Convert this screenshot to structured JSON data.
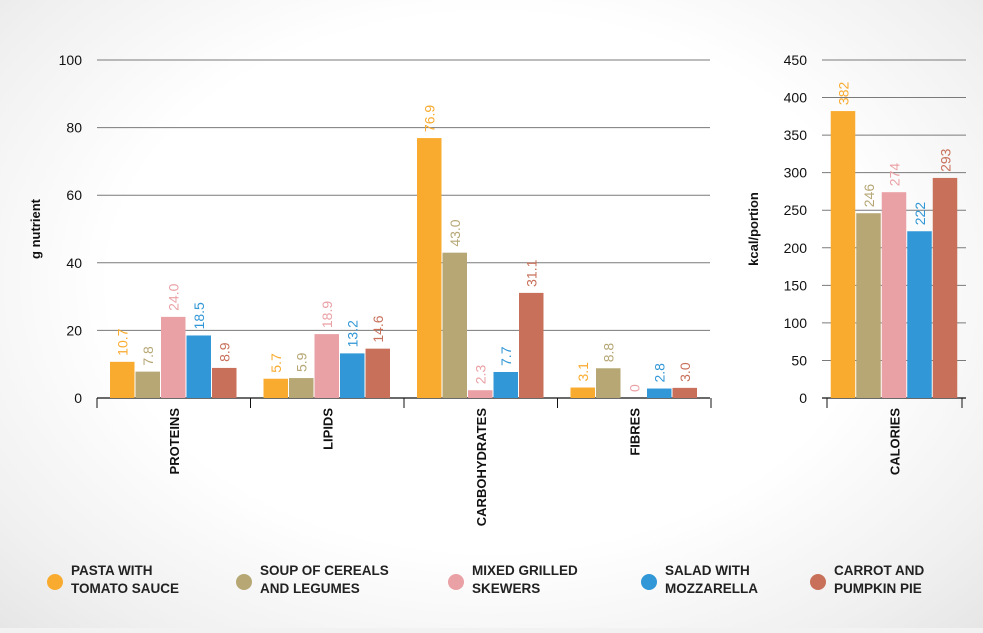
{
  "chart_data": [
    {
      "type": "bar",
      "ylabel": "g nutrient",
      "ylim": [
        0,
        100
      ],
      "yticks": [
        "0",
        "20",
        "40",
        "60",
        "80",
        "100"
      ],
      "grid": true,
      "categories": [
        "PROTEINS",
        "LIPIDS",
        "CARBOHYDRATES",
        "FIBRES"
      ],
      "series": [
        {
          "name": "PASTA WITH TOMATO SAUCE",
          "color": "#f9ab2f",
          "values": [
            10.7,
            5.7,
            76.9,
            3.1
          ],
          "labels": [
            "10.7",
            "5.7",
            "76.9",
            "3.1"
          ]
        },
        {
          "name": "SOUP OF CEREALS AND LEGUMES",
          "color": "#b6a775",
          "values": [
            7.8,
            5.9,
            43.0,
            8.8
          ],
          "labels": [
            "7.8",
            "5.9",
            "43.0",
            "8.8"
          ]
        },
        {
          "name": "MIXED GRILLED SKEWERS",
          "color": "#eaa1a5",
          "values": [
            24.0,
            18.9,
            2.3,
            0
          ],
          "labels": [
            "24.0",
            "18.9",
            "2.3",
            "0"
          ]
        },
        {
          "name": "SALAD WITH MOZZARELLA",
          "color": "#3197d6",
          "values": [
            18.5,
            13.2,
            7.7,
            2.8
          ],
          "labels": [
            "18.5",
            "13.2",
            "7.7",
            "2.8"
          ]
        },
        {
          "name": "CARROT AND PUMPKIN PIE",
          "color": "#c8705a",
          "values": [
            8.9,
            14.6,
            31.1,
            3.0
          ],
          "labels": [
            "8.9",
            "14.6",
            "31.1",
            "3.0"
          ]
        }
      ]
    },
    {
      "type": "bar",
      "ylabel": "kcal/portion",
      "ylim": [
        0,
        450
      ],
      "yticks": [
        "0",
        "50",
        "100",
        "150",
        "200",
        "250",
        "300",
        "350",
        "400",
        "450"
      ],
      "grid": true,
      "categories": [
        "CALORIES"
      ],
      "series": [
        {
          "name": "PASTA WITH TOMATO SAUCE",
          "color": "#f9ab2f",
          "values": [
            382
          ],
          "labels": [
            "382"
          ]
        },
        {
          "name": "SOUP OF CEREALS AND LEGUMES",
          "color": "#b6a775",
          "values": [
            246
          ],
          "labels": [
            "246"
          ]
        },
        {
          "name": "MIXED GRILLED SKEWERS",
          "color": "#eaa1a5",
          "values": [
            274
          ],
          "labels": [
            "274"
          ]
        },
        {
          "name": "SALAD WITH MOZZARELLA",
          "color": "#3197d6",
          "values": [
            222
          ],
          "labels": [
            "222"
          ]
        },
        {
          "name": "CARROT AND PUMPKIN PIE",
          "color": "#c8705a",
          "values": [
            293
          ],
          "labels": [
            "293"
          ]
        }
      ]
    }
  ],
  "legend": {
    "placement": "bottom",
    "items": [
      {
        "line1": "PASTA WITH",
        "line2": "TOMATO SAUCE",
        "color": "#f9ab2f"
      },
      {
        "line1": "SOUP OF CEREALS",
        "line2": "AND LEGUMES",
        "color": "#b6a775"
      },
      {
        "line1": "MIXED GRILLED",
        "line2": "SKEWERS",
        "color": "#eaa1a5"
      },
      {
        "line1": "SALAD WITH",
        "line2": "MOZZARELLA",
        "color": "#3197d6"
      },
      {
        "line1": "CARROT AND",
        "line2": "PUMPKIN PIE",
        "color": "#c8705a"
      }
    ]
  }
}
